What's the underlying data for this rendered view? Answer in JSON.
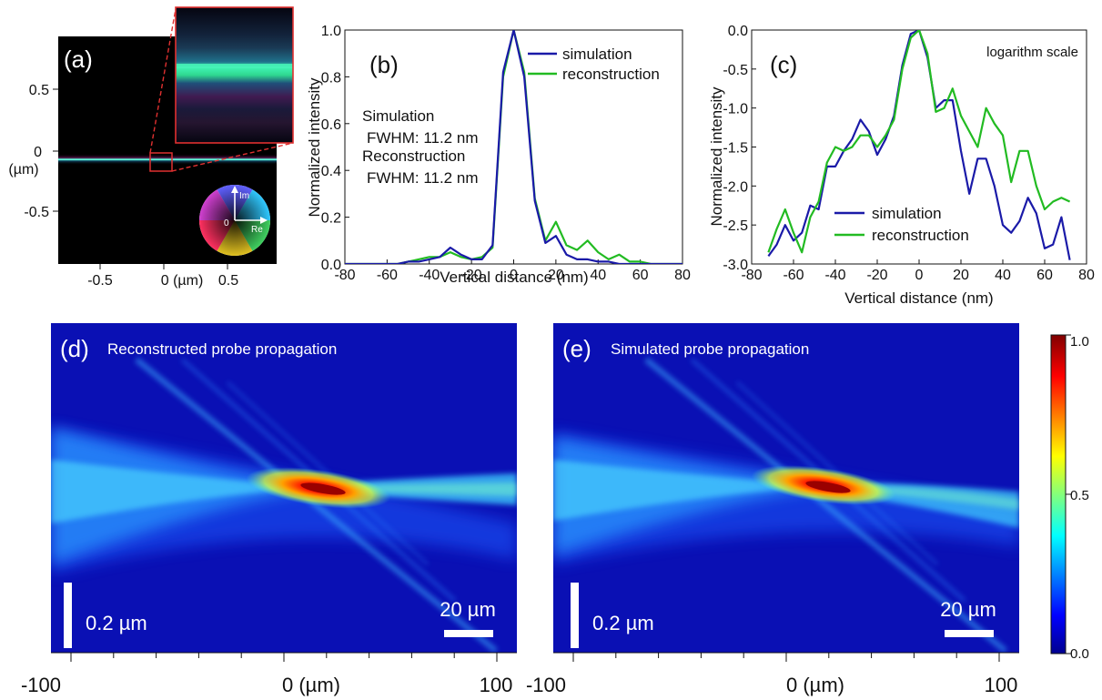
{
  "panel_a": {
    "label": "(a)",
    "y_ticks": [
      "0.5",
      "0",
      "-0.5"
    ],
    "y_unit": "(µm)",
    "x_ticks": [
      "-0.5",
      "0 (µm)",
      "0.5"
    ],
    "wheel": {
      "im": "Im",
      "re": "Re",
      "zero": "0"
    },
    "colors": {
      "line": "#2fd3b8",
      "zoom_box": "#e03030"
    }
  },
  "chart_data": [
    {
      "id": "b",
      "type": "line",
      "label": "(b)",
      "xlabel": "Vertical distance (nm)",
      "ylabel": "Normalized intensity",
      "xlim": [
        -80,
        80
      ],
      "ylim": [
        0,
        1
      ],
      "x_ticks": [
        -80,
        -60,
        -40,
        -20,
        0,
        20,
        40,
        60,
        80
      ],
      "y_ticks": [
        0.0,
        0.2,
        0.4,
        0.6,
        0.8,
        1.0
      ],
      "legend_position": "top-right",
      "annotations": [
        "Simulation",
        "FWHM: 11.2 nm",
        "Reconstruction",
        "FWHM: 11.2 nm"
      ],
      "series": [
        {
          "name": "reconstruction",
          "color": "#22bb22",
          "x": [
            -80,
            -75,
            -70,
            -65,
            -60,
            -55,
            -50,
            -45,
            -40,
            -35,
            -30,
            -25,
            -20,
            -15,
            -10,
            -5,
            0,
            5,
            10,
            15,
            20,
            25,
            30,
            35,
            40,
            45,
            50,
            55,
            60,
            65,
            70,
            75,
            80
          ],
          "y": [
            0,
            0,
            0,
            0,
            0,
            0,
            0.01,
            0.02,
            0.03,
            0.03,
            0.05,
            0.03,
            0.02,
            0.03,
            0.07,
            0.8,
            1.0,
            0.82,
            0.28,
            0.1,
            0.18,
            0.08,
            0.06,
            0.1,
            0.05,
            0.02,
            0.04,
            0.01,
            0.01,
            0,
            0,
            0,
            0
          ]
        },
        {
          "name": "simulation",
          "color": "#1a1aa8",
          "x": [
            -80,
            -75,
            -70,
            -65,
            -60,
            -55,
            -50,
            -45,
            -40,
            -35,
            -30,
            -25,
            -20,
            -15,
            -10,
            -5,
            0,
            5,
            10,
            15,
            20,
            25,
            30,
            35,
            40,
            45,
            50,
            55,
            60,
            65,
            70,
            75,
            80
          ],
          "y": [
            0,
            0,
            0,
            0,
            0,
            0,
            0.01,
            0.01,
            0.02,
            0.03,
            0.07,
            0.04,
            0.02,
            0.02,
            0.08,
            0.82,
            1.0,
            0.8,
            0.27,
            0.09,
            0.12,
            0.04,
            0.02,
            0.02,
            0.01,
            0.01,
            0,
            0,
            0,
            0,
            0,
            0,
            0
          ]
        }
      ]
    },
    {
      "id": "c",
      "type": "line",
      "label": "(c)",
      "xlabel": "Vertical distance (nm)",
      "ylabel": "Normalized intensity",
      "xlim": [
        -80,
        80
      ],
      "ylim": [
        -3.0,
        0.0
      ],
      "log_scale": true,
      "x_ticks": [
        -80,
        -60,
        -40,
        -20,
        0,
        20,
        40,
        60,
        80
      ],
      "y_ticks": [
        0.0,
        -0.5,
        -1.0,
        -1.5,
        -2.0,
        -2.5,
        -3.0
      ],
      "legend_position": "bottom-center",
      "annotations": [
        "logarithm scale"
      ],
      "series": [
        {
          "name": "simulation",
          "color": "#1a1aa8",
          "x": [
            -72,
            -68,
            -64,
            -60,
            -56,
            -52,
            -48,
            -44,
            -40,
            -36,
            -32,
            -28,
            -24,
            -20,
            -16,
            -12,
            -8,
            -4,
            0,
            4,
            8,
            12,
            16,
            20,
            24,
            28,
            32,
            36,
            40,
            44,
            48,
            52,
            56,
            60,
            64,
            68,
            72
          ],
          "y": [
            -2.9,
            -2.75,
            -2.5,
            -2.7,
            -2.6,
            -2.25,
            -2.3,
            -1.75,
            -1.75,
            -1.55,
            -1.4,
            -1.15,
            -1.3,
            -1.6,
            -1.4,
            -1.1,
            -0.45,
            -0.05,
            0.0,
            -0.35,
            -1.0,
            -0.9,
            -0.9,
            -1.55,
            -2.1,
            -1.65,
            -1.65,
            -2.0,
            -2.5,
            -2.6,
            -2.45,
            -2.15,
            -2.35,
            -2.8,
            -2.75,
            -2.4,
            -2.95
          ]
        },
        {
          "name": "reconstruction",
          "color": "#22bb22",
          "x": [
            -72,
            -68,
            -64,
            -60,
            -56,
            -52,
            -48,
            -44,
            -40,
            -36,
            -32,
            -28,
            -24,
            -20,
            -16,
            -12,
            -8,
            -4,
            0,
            4,
            8,
            12,
            16,
            20,
            24,
            28,
            32,
            36,
            40,
            44,
            48,
            52,
            56,
            60,
            64,
            68,
            72
          ],
          "y": [
            -2.85,
            -2.55,
            -2.3,
            -2.6,
            -2.85,
            -2.4,
            -2.2,
            -1.7,
            -1.5,
            -1.55,
            -1.5,
            -1.35,
            -1.35,
            -1.5,
            -1.35,
            -1.15,
            -0.5,
            -0.1,
            0.0,
            -0.3,
            -1.05,
            -1.0,
            -0.75,
            -1.1,
            -1.3,
            -1.5,
            -1.0,
            -1.2,
            -1.35,
            -1.95,
            -1.55,
            -1.55,
            -2.0,
            -2.3,
            -2.2,
            -2.15,
            -2.2
          ]
        }
      ]
    },
    {
      "id": "colorbar",
      "type": "heatmap",
      "ticks": [
        "1.0",
        "0.5",
        "0.0"
      ],
      "range": [
        0,
        1
      ],
      "colormap": [
        "#00008f",
        "#0000ff",
        "#00ffff",
        "#ffff00",
        "#ff0000",
        "#800000"
      ]
    }
  ],
  "panel_d": {
    "label": "(d)",
    "caption": "Reconstructed probe propagation",
    "scale_v": "0.2 µm",
    "scale_h": "20 µm",
    "x_ticks": [
      "-100",
      "0 (µm)",
      "100"
    ]
  },
  "panel_e": {
    "label": "(e)",
    "caption": "Simulated probe propagation",
    "scale_v": "0.2 µm",
    "scale_h": "20 µm",
    "x_ticks": [
      "-100",
      "0 (µm)",
      "100"
    ]
  }
}
